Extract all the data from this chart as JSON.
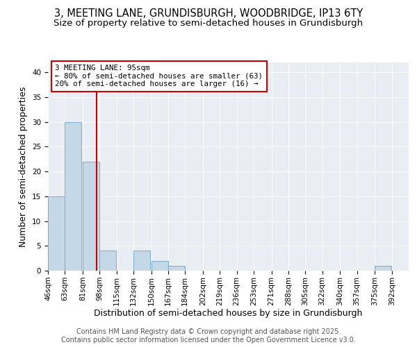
{
  "title1": "3, MEETING LANE, GRUNDISBURGH, WOODBRIDGE, IP13 6TY",
  "title2": "Size of property relative to semi-detached houses in Grundisburgh",
  "xlabel": "Distribution of semi-detached houses by size in Grundisburgh",
  "ylabel": "Number of semi-detached properties",
  "bin_labels": [
    "46sqm",
    "63sqm",
    "81sqm",
    "98sqm",
    "115sqm",
    "132sqm",
    "150sqm",
    "167sqm",
    "184sqm",
    "202sqm",
    "219sqm",
    "236sqm",
    "253sqm",
    "271sqm",
    "288sqm",
    "305sqm",
    "322sqm",
    "340sqm",
    "357sqm",
    "375sqm",
    "392sqm"
  ],
  "bin_edges": [
    46,
    63,
    81,
    98,
    115,
    132,
    150,
    167,
    184,
    202,
    219,
    236,
    253,
    271,
    288,
    305,
    322,
    340,
    357,
    375,
    392
  ],
  "bar_heights": [
    15,
    30,
    22,
    4,
    0,
    4,
    2,
    1,
    0,
    0,
    0,
    0,
    0,
    0,
    0,
    0,
    0,
    0,
    0,
    1,
    0
  ],
  "bar_color": "#c5d8e8",
  "bar_edge_color": "#7aaec8",
  "property_size": 95,
  "red_line_color": "#cc0000",
  "annotation_text": "3 MEETING LANE: 95sqm\n← 80% of semi-detached houses are smaller (63)\n20% of semi-detached houses are larger (16) →",
  "annotation_box_color": "#cc0000",
  "ylim": [
    0,
    42
  ],
  "yticks": [
    0,
    5,
    10,
    15,
    20,
    25,
    30,
    35,
    40
  ],
  "background_color": "#e8eef4",
  "footer_text": "Contains HM Land Registry data © Crown copyright and database right 2025.\nContains public sector information licensed under the Open Government Licence v3.0.",
  "title_fontsize": 10.5,
  "subtitle_fontsize": 9.5,
  "axis_label_fontsize": 9,
  "tick_fontsize": 7.5,
  "footer_fontsize": 7
}
